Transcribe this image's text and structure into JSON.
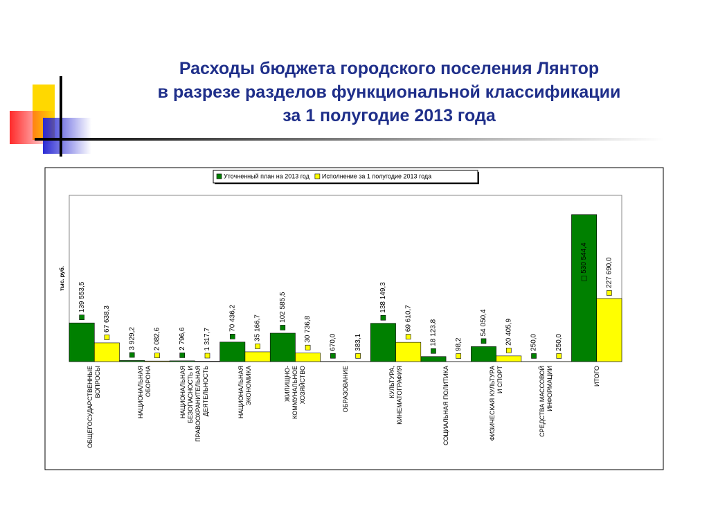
{
  "header": {
    "title_lines": [
      "Расходы бюджета городского поселения Лянтор",
      "в разрезе разделов функциональной классификации",
      "за  1 полугодие 2013 года"
    ]
  },
  "chart_data": {
    "type": "bar",
    "y_label": "тыс. руб.",
    "legend": "top",
    "categories": [
      "ОБЩЕГОСУДАРСТВЕННЫЕ\nВОПРОСЫ",
      "НАЦИОНАЛЬНАЯ\nОБОРОНА",
      "НАЦИОНАЛЬНАЯ\nБЕЗОПАСНОСТЬ И\nПРАВООХРАНИТЕЛЬНАЯ\nДЕЯТЕЛЬНОСТЬ",
      "НАЦИОНАЛЬНАЯ\nЭКОНОМИКА",
      "ЖИЛИЩНО-\nКОММУНАЛЬНОЕ\nХОЗЯЙСТВО",
      "ОБРАЗОВАНИЕ",
      "КУЛЬТУРА,\nКИНЕМАТОГРАФИЯ",
      "СОЦИАЛЬНАЯ ПОЛИТИКА",
      "ФИЗИЧЕСКАЯ КУЛЬТУРА\nИ СПОРТ",
      "СРЕДСТВА МАССОВОЙ\nИНФОРМАЦИИ",
      "ИТОГО"
    ],
    "ylim": [
      0,
      600000
    ],
    "series": [
      {
        "name": "Уточненный план на 2013 год",
        "color": "#008000",
        "values": [
          139553.5,
          3929.2,
          2796.6,
          70436.2,
          102585.5,
          670.0,
          138149.3,
          18123.8,
          54050.4,
          250.0,
          530544.4
        ],
        "value_labels": [
          "139 553,5",
          "3 929,2",
          "2 796,6",
          "70 436,2",
          "102 585,5",
          "670,0",
          "138 149,3",
          "18 123,8",
          "54 050,4",
          "250,0",
          "530 544,4"
        ]
      },
      {
        "name": "Исполнение за 1 полугодие 2013 года",
        "color": "#ffff00",
        "values": [
          67638.3,
          2082.6,
          1317.7,
          35166.7,
          30736.8,
          383.1,
          69610.7,
          98.2,
          20405.9,
          250.0,
          227690.0
        ],
        "value_labels": [
          "67 638,3",
          "2 082,6",
          "1 317,7",
          "35 166,7",
          "30 736,8",
          "383,1",
          "69 610,7",
          "98,2",
          "20 405,9",
          "250,0",
          "227 690,0"
        ]
      }
    ]
  }
}
